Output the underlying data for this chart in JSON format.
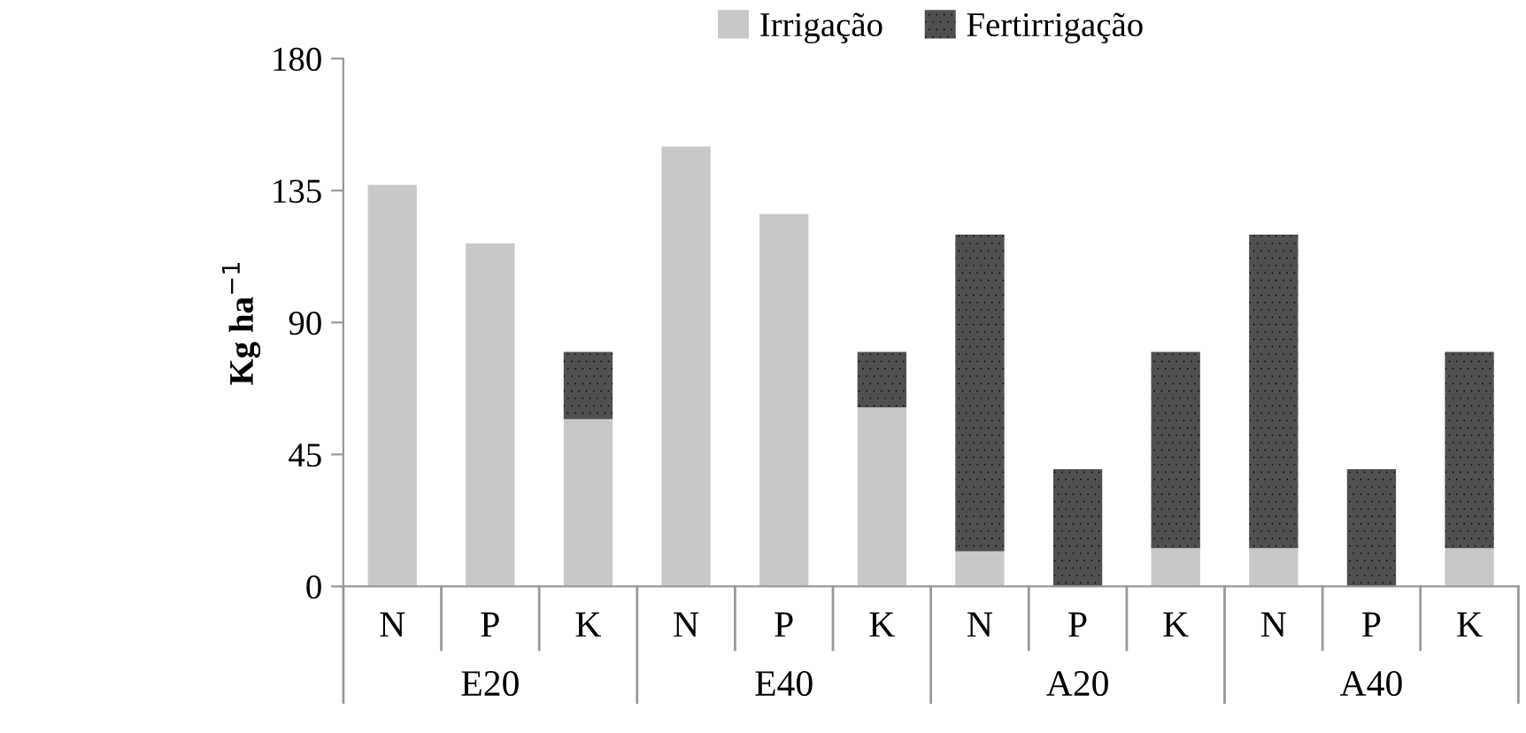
{
  "chart_data": {
    "type": "bar",
    "stacked": true,
    "ylabel": "Kg ha$^{−1}$",
    "categories": [
      "N",
      "P",
      "K",
      "N",
      "P",
      "K",
      "N",
      "P",
      "K",
      "N",
      "P",
      "K"
    ],
    "annotations": [
      "E20",
      "E40",
      "A20",
      "A40"
    ],
    "series": [
      {
        "name": "Irrigação",
        "color": "#c8c8c8",
        "values": [
          137,
          117,
          57,
          150,
          127,
          61,
          12,
          0,
          13,
          13,
          0,
          13
        ]
      },
      {
        "name": "Fertirrigação",
        "color": "#505050",
        "values": [
          0,
          0,
          23,
          0,
          0,
          19,
          108,
          40,
          67,
          107,
          40,
          67
        ]
      }
    ],
    "ylim": [
      0,
      180
    ],
    "yticks": [
      0,
      45,
      90,
      135,
      180
    ],
    "grid": false,
    "legend": "top"
  }
}
